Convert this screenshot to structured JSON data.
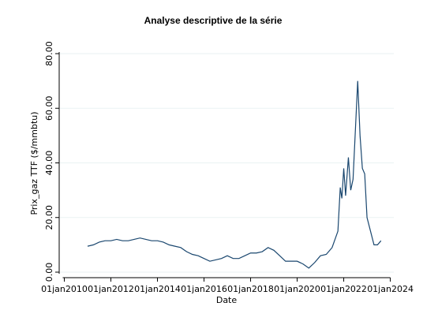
{
  "chart_data": {
    "type": "line",
    "title": "Analyse descriptive de la série",
    "x_label": "Date",
    "y_label": "Prix_gaz TTF ($/mmbtu)",
    "x": [
      2011.0,
      2011.25,
      2011.5,
      2011.75,
      2012.0,
      2012.25,
      2012.5,
      2012.75,
      2013.0,
      2013.25,
      2013.5,
      2013.75,
      2014.0,
      2014.25,
      2014.5,
      2014.75,
      2015.0,
      2015.25,
      2015.5,
      2015.75,
      2016.0,
      2016.25,
      2016.5,
      2016.75,
      2017.0,
      2017.25,
      2017.5,
      2017.75,
      2018.0,
      2018.25,
      2018.5,
      2018.75,
      2019.0,
      2019.25,
      2019.5,
      2019.75,
      2020.0,
      2020.25,
      2020.5,
      2020.75,
      2021.0,
      2021.25,
      2021.5,
      2021.75,
      2021.85,
      2021.92,
      2022.0,
      2022.08,
      2022.2,
      2022.3,
      2022.4,
      2022.6,
      2022.7,
      2022.8,
      2022.9,
      2023.0,
      2023.15,
      2023.3,
      2023.45,
      2023.6
    ],
    "series": [
      {
        "name": "Prix_gaz TTF ($/mmbtu)",
        "color": "#1a476f",
        "values": [
          9.5,
          10,
          11,
          11.5,
          11.5,
          12,
          11.5,
          11.5,
          12,
          12.5,
          12,
          11.5,
          11.5,
          11,
          10,
          9.5,
          9,
          7.5,
          6.5,
          6,
          5,
          4,
          4.5,
          5,
          6,
          5,
          5,
          6,
          7,
          7,
          7.5,
          9,
          8,
          6,
          4,
          4,
          4,
          3,
          1.5,
          3.5,
          6,
          6.5,
          9,
          15,
          31,
          27,
          38,
          28,
          42,
          30,
          34,
          70,
          50,
          38,
          36,
          20,
          15,
          10,
          10,
          11.5
        ]
      }
    ],
    "xlim": [
      2009.78,
      2024.15
    ],
    "ylim": [
      0,
      80
    ],
    "xticks": [
      {
        "value": 2010,
        "label": "01jan2010"
      },
      {
        "value": 2012,
        "label": "01jan2012"
      },
      {
        "value": 2014,
        "label": "01jan2014"
      },
      {
        "value": 2016,
        "label": "01jan2016"
      },
      {
        "value": 2018,
        "label": "01jan2018"
      },
      {
        "value": 2020,
        "label": "01jan2020"
      },
      {
        "value": 2022,
        "label": "01jan2022"
      },
      {
        "value": 2024,
        "label": "01jan2024"
      }
    ],
    "yticks": [
      {
        "value": 0,
        "label": "0.00"
      },
      {
        "value": 20,
        "label": "20.00"
      },
      {
        "value": 40,
        "label": "40.00"
      },
      {
        "value": 60,
        "label": "60.00"
      },
      {
        "value": 80,
        "label": "80.00"
      }
    ],
    "grid": true
  }
}
